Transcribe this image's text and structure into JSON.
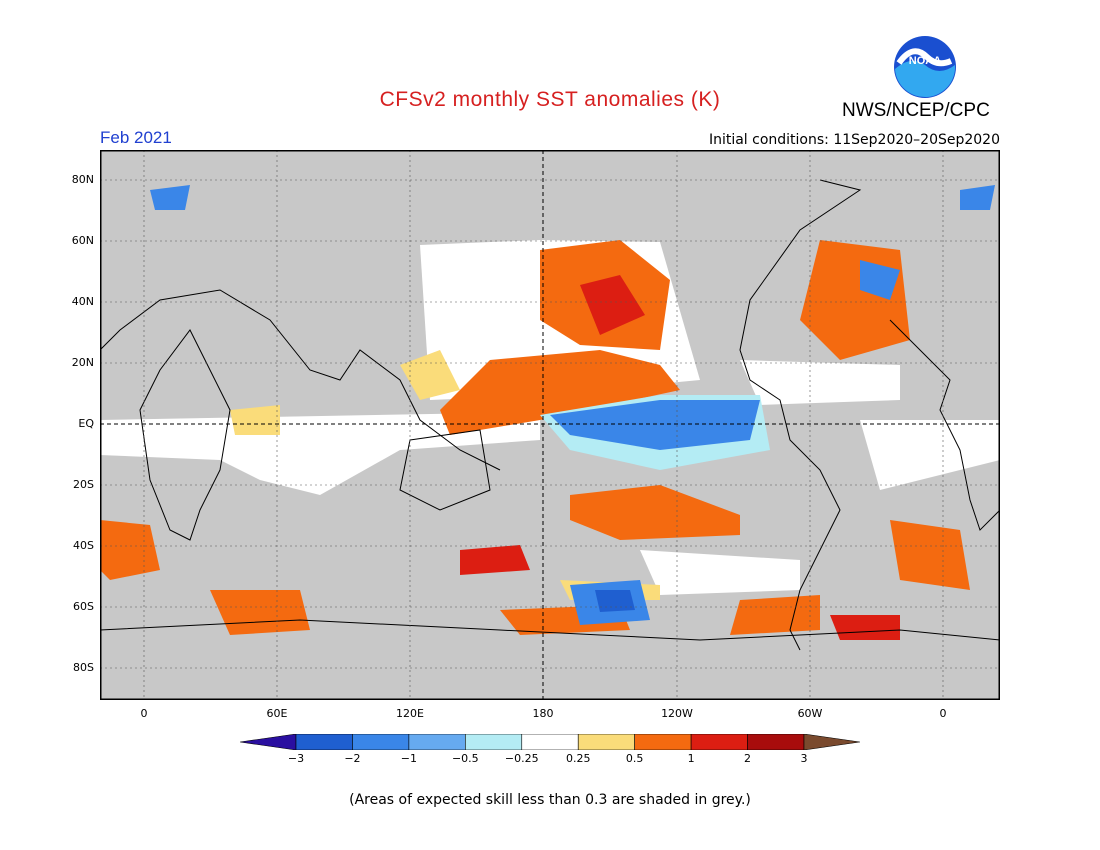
{
  "header": {
    "title": "CFSv2 monthly SST anomalies (K)",
    "agency": "NWS/NCEP/CPC",
    "logo_text": "NOAA",
    "month": "Feb 2021",
    "initial_conditions": "Initial conditions: 11Sep2020–20Sep2020"
  },
  "axes": {
    "lat_labels": [
      "80N",
      "60N",
      "40N",
      "20N",
      "EQ",
      "20S",
      "40S",
      "60S",
      "80S"
    ],
    "lon_labels": [
      "0",
      "60E",
      "120E",
      "180",
      "120W",
      "60W",
      "0"
    ]
  },
  "colorbar": {
    "labels": [
      "−3",
      "−2",
      "−1",
      "−0.5",
      "−0.25",
      "0.25",
      "0.5",
      "1",
      "2",
      "3"
    ],
    "colors": [
      "#2a0fa0",
      "#1f5fd0",
      "#3a86e8",
      "#66aaf0",
      "#b4ecf4",
      "#ffffff",
      "#fadc7a",
      "#f46a10",
      "#dc1e12",
      "#a80c0c",
      "#7a4a2e"
    ]
  },
  "footnote": "(Areas of expected skill less than 0.3 are shaded in grey.)",
  "colors": {
    "grey": "#c8c8c8",
    "title": "#d62020",
    "month": "#2040d0"
  }
}
